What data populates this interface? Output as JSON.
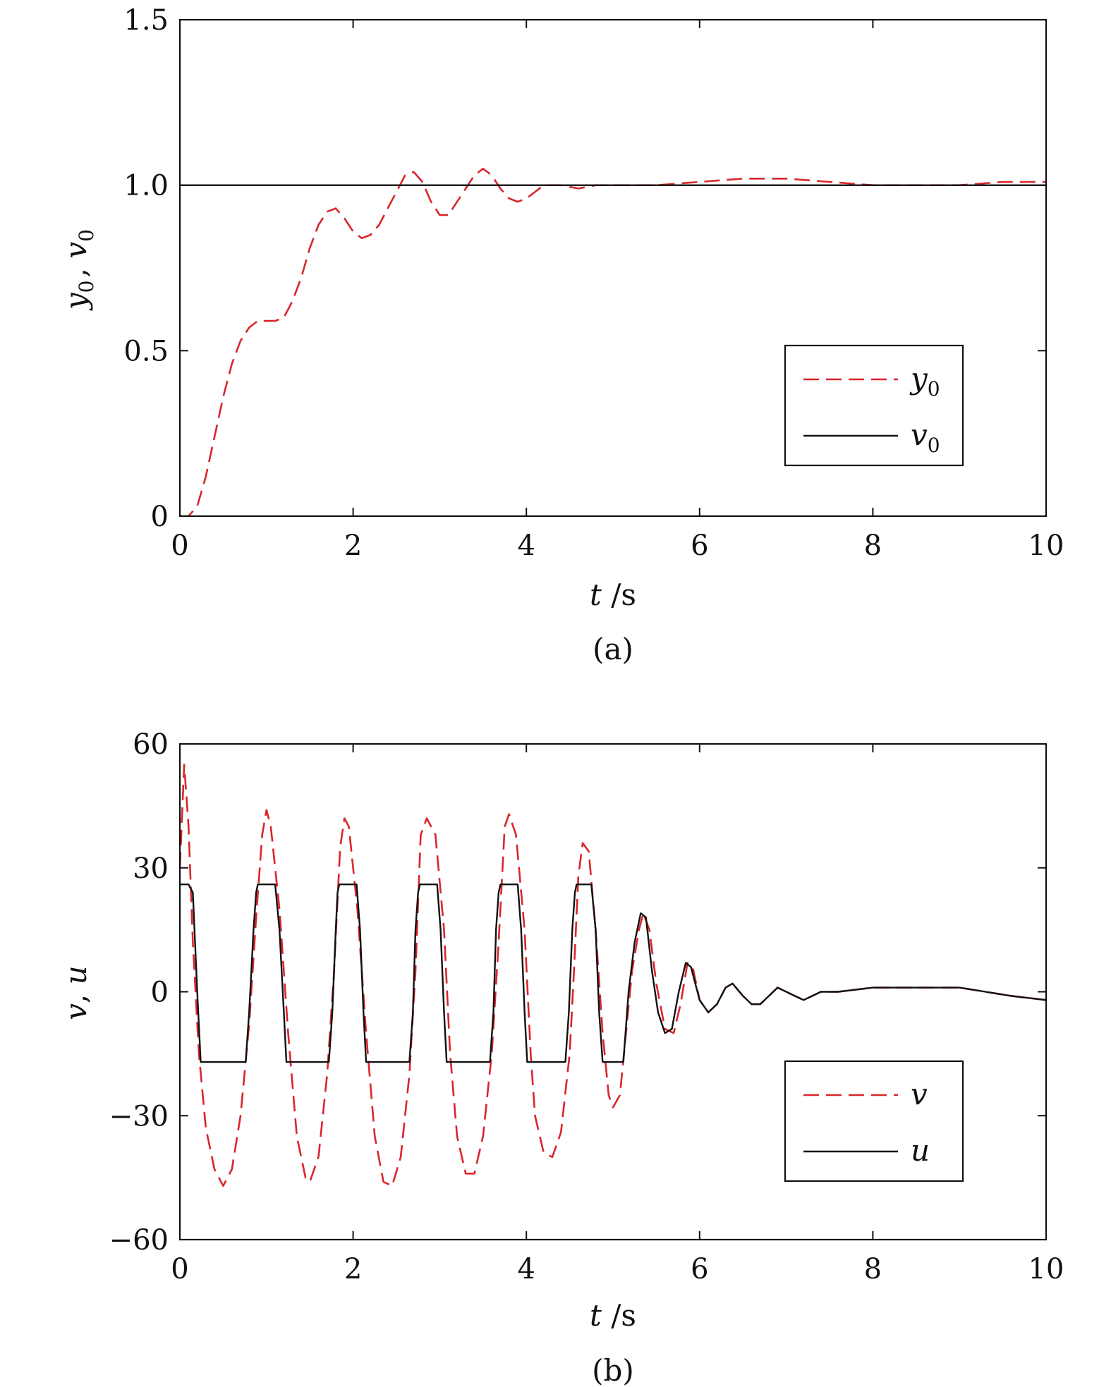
{
  "chart_data": [
    {
      "type": "line",
      "caption": "(a)",
      "xlabel": {
        "var": "t",
        "unit": "/s"
      },
      "ylabel": {
        "parts": [
          {
            "var": "y",
            "sub": "0"
          },
          {
            "sep": ", "
          },
          {
            "var": "v",
            "sub": "0"
          }
        ]
      },
      "xlim": [
        0,
        10
      ],
      "ylim": [
        0,
        1.5
      ],
      "xticks": [
        "0",
        "2",
        "4",
        "6",
        "8",
        "10"
      ],
      "xtick_values": [
        0,
        2,
        4,
        6,
        8,
        10
      ],
      "yticks": [
        "0",
        "0.5",
        "1.0",
        "1.5"
      ],
      "ytick_values": [
        0,
        0.5,
        1.0,
        1.5
      ],
      "grid": false,
      "legend_position": "right-middle",
      "series": [
        {
          "name": {
            "var": "y",
            "sub": "0"
          },
          "color": "#d9262c",
          "style": "dashed",
          "points": [
            [
              0,
              0
            ],
            [
              0.1,
              0.0
            ],
            [
              0.2,
              0.03
            ],
            [
              0.3,
              0.12
            ],
            [
              0.4,
              0.24
            ],
            [
              0.5,
              0.36
            ],
            [
              0.6,
              0.46
            ],
            [
              0.7,
              0.53
            ],
            [
              0.8,
              0.57
            ],
            [
              0.9,
              0.59
            ],
            [
              1.0,
              0.59
            ],
            [
              1.1,
              0.59
            ],
            [
              1.2,
              0.6
            ],
            [
              1.3,
              0.65
            ],
            [
              1.4,
              0.72
            ],
            [
              1.5,
              0.81
            ],
            [
              1.6,
              0.88
            ],
            [
              1.7,
              0.92
            ],
            [
              1.8,
              0.93
            ],
            [
              1.9,
              0.9
            ],
            [
              2.0,
              0.86
            ],
            [
              2.1,
              0.84
            ],
            [
              2.2,
              0.85
            ],
            [
              2.3,
              0.88
            ],
            [
              2.4,
              0.93
            ],
            [
              2.5,
              0.98
            ],
            [
              2.6,
              1.03
            ],
            [
              2.7,
              1.04
            ],
            [
              2.8,
              1.01
            ],
            [
              2.9,
              0.95
            ],
            [
              3.0,
              0.91
            ],
            [
              3.1,
              0.91
            ],
            [
              3.2,
              0.95
            ],
            [
              3.3,
              0.99
            ],
            [
              3.4,
              1.03
            ],
            [
              3.5,
              1.05
            ],
            [
              3.6,
              1.03
            ],
            [
              3.7,
              0.99
            ],
            [
              3.8,
              0.96
            ],
            [
              3.9,
              0.95
            ],
            [
              4.0,
              0.96
            ],
            [
              4.1,
              0.98
            ],
            [
              4.2,
              1.0
            ],
            [
              4.4,
              1.0
            ],
            [
              4.6,
              0.99
            ],
            [
              4.8,
              1.0
            ],
            [
              5.0,
              1.0
            ],
            [
              5.5,
              1.0
            ],
            [
              6.0,
              1.01
            ],
            [
              6.5,
              1.02
            ],
            [
              7.0,
              1.02
            ],
            [
              7.5,
              1.01
            ],
            [
              8.0,
              1.0
            ],
            [
              8.5,
              1.0
            ],
            [
              9.0,
              1.0
            ],
            [
              9.5,
              1.01
            ],
            [
              10.0,
              1.01
            ]
          ]
        },
        {
          "name": {
            "var": "v",
            "sub": "0"
          },
          "color": "#111111",
          "style": "solid",
          "points": [
            [
              0,
              1.0
            ],
            [
              10,
              1.0
            ]
          ]
        }
      ]
    },
    {
      "type": "line",
      "caption": "(b)",
      "xlabel": {
        "var": "t",
        "unit": "/s"
      },
      "ylabel": {
        "parts": [
          {
            "var": "v"
          },
          {
            "sep": ", "
          },
          {
            "var": "u"
          }
        ]
      },
      "xlim": [
        0,
        10
      ],
      "ylim": [
        -60,
        60
      ],
      "xticks": [
        "0",
        "2",
        "4",
        "6",
        "8",
        "10"
      ],
      "xtick_values": [
        0,
        2,
        4,
        6,
        8,
        10
      ],
      "yticks": [
        "−60",
        "−30",
        "0",
        "30",
        "60"
      ],
      "ytick_values": [
        -60,
        -30,
        0,
        30,
        60
      ],
      "grid": false,
      "legend_position": "bottom-right",
      "series": [
        {
          "name": {
            "var": "v"
          },
          "color": "#d9262c",
          "style": "dashed",
          "points": [
            [
              0,
              30
            ],
            [
              0.05,
              55
            ],
            [
              0.1,
              40
            ],
            [
              0.15,
              12
            ],
            [
              0.22,
              -15
            ],
            [
              0.3,
              -33
            ],
            [
              0.4,
              -43
            ],
            [
              0.5,
              -47
            ],
            [
              0.6,
              -43
            ],
            [
              0.7,
              -30
            ],
            [
              0.8,
              -8
            ],
            [
              0.88,
              18
            ],
            [
              0.95,
              38
            ],
            [
              1.0,
              44
            ],
            [
              1.05,
              40
            ],
            [
              1.15,
              20
            ],
            [
              1.25,
              -10
            ],
            [
              1.35,
              -35
            ],
            [
              1.45,
              -45
            ],
            [
              1.5,
              -46
            ],
            [
              1.6,
              -40
            ],
            [
              1.7,
              -20
            ],
            [
              1.78,
              5
            ],
            [
              1.85,
              35
            ],
            [
              1.9,
              42
            ],
            [
              1.95,
              40
            ],
            [
              2.05,
              20
            ],
            [
              2.15,
              -10
            ],
            [
              2.25,
              -35
            ],
            [
              2.35,
              -46
            ],
            [
              2.45,
              -47
            ],
            [
              2.55,
              -40
            ],
            [
              2.65,
              -20
            ],
            [
              2.72,
              5
            ],
            [
              2.78,
              38
            ],
            [
              2.85,
              42
            ],
            [
              2.95,
              38
            ],
            [
              3.05,
              15
            ],
            [
              3.12,
              -15
            ],
            [
              3.2,
              -35
            ],
            [
              3.3,
              -44
            ],
            [
              3.4,
              -44
            ],
            [
              3.5,
              -35
            ],
            [
              3.6,
              -15
            ],
            [
              3.68,
              12
            ],
            [
              3.75,
              40
            ],
            [
              3.8,
              43
            ],
            [
              3.88,
              38
            ],
            [
              3.98,
              15
            ],
            [
              4.05,
              -15
            ],
            [
              4.1,
              -30
            ],
            [
              4.2,
              -39
            ],
            [
              4.3,
              -40
            ],
            [
              4.4,
              -34
            ],
            [
              4.5,
              -15
            ],
            [
              4.55,
              5
            ],
            [
              4.6,
              28
            ],
            [
              4.65,
              36
            ],
            [
              4.72,
              34
            ],
            [
              4.8,
              15
            ],
            [
              4.88,
              -10
            ],
            [
              4.95,
              -25
            ],
            [
              5.0,
              -28
            ],
            [
              5.08,
              -25
            ],
            [
              5.15,
              -10
            ],
            [
              5.22,
              5
            ],
            [
              5.3,
              15
            ],
            [
              5.35,
              19
            ],
            [
              5.42,
              15
            ],
            [
              5.5,
              2
            ],
            [
              5.6,
              -9
            ],
            [
              5.7,
              -10
            ],
            [
              5.78,
              -3
            ],
            [
              5.86,
              7
            ],
            [
              5.92,
              6
            ],
            [
              6.0,
              -2
            ],
            [
              6.1,
              -5
            ],
            [
              6.2,
              -3
            ],
            [
              6.3,
              1
            ],
            [
              6.38,
              2
            ],
            [
              6.5,
              -1
            ],
            [
              6.6,
              -3
            ],
            [
              6.7,
              -3
            ],
            [
              6.8,
              -1
            ],
            [
              6.9,
              1
            ],
            [
              7.0,
              0
            ],
            [
              7.1,
              -1
            ],
            [
              7.2,
              -2
            ],
            [
              7.3,
              -1
            ],
            [
              7.4,
              0
            ],
            [
              7.6,
              0
            ],
            [
              8.0,
              1
            ],
            [
              8.5,
              1
            ],
            [
              9.0,
              1
            ],
            [
              9.3,
              0
            ],
            [
              9.6,
              -1
            ],
            [
              10.0,
              -2
            ]
          ]
        },
        {
          "name": {
            "var": "u"
          },
          "color": "#111111",
          "style": "solid",
          "points": [
            [
              0,
              26
            ],
            [
              0.1,
              26
            ],
            [
              0.15,
              24
            ],
            [
              0.2,
              0
            ],
            [
              0.24,
              -17
            ],
            [
              0.76,
              -17
            ],
            [
              0.8,
              -5
            ],
            [
              0.85,
              15
            ],
            [
              0.88,
              24
            ],
            [
              0.9,
              26
            ],
            [
              1.1,
              26
            ],
            [
              1.15,
              15
            ],
            [
              1.2,
              -5
            ],
            [
              1.23,
              -17
            ],
            [
              1.72,
              -17
            ],
            [
              1.76,
              -5
            ],
            [
              1.8,
              15
            ],
            [
              1.82,
              24
            ],
            [
              1.84,
              26
            ],
            [
              2.04,
              26
            ],
            [
              2.08,
              15
            ],
            [
              2.12,
              -5
            ],
            [
              2.15,
              -17
            ],
            [
              2.65,
              -17
            ],
            [
              2.69,
              -5
            ],
            [
              2.72,
              15
            ],
            [
              2.75,
              24
            ],
            [
              2.77,
              26
            ],
            [
              2.97,
              26
            ],
            [
              3.01,
              15
            ],
            [
              3.05,
              -5
            ],
            [
              3.08,
              -17
            ],
            [
              3.58,
              -17
            ],
            [
              3.62,
              -5
            ],
            [
              3.65,
              15
            ],
            [
              3.68,
              24
            ],
            [
              3.7,
              26
            ],
            [
              3.9,
              26
            ],
            [
              3.94,
              15
            ],
            [
              3.98,
              -5
            ],
            [
              4.01,
              -17
            ],
            [
              4.45,
              -17
            ],
            [
              4.49,
              -5
            ],
            [
              4.53,
              15
            ],
            [
              4.56,
              24
            ],
            [
              4.58,
              26
            ],
            [
              4.75,
              26
            ],
            [
              4.8,
              15
            ],
            [
              4.84,
              -5
            ],
            [
              4.88,
              -17
            ],
            [
              5.12,
              -17
            ],
            [
              5.18,
              0
            ],
            [
              5.25,
              12
            ],
            [
              5.32,
              19
            ],
            [
              5.38,
              18
            ],
            [
              5.45,
              5
            ],
            [
              5.52,
              -5
            ],
            [
              5.6,
              -10
            ],
            [
              5.68,
              -9
            ],
            [
              5.76,
              0
            ],
            [
              5.84,
              7
            ],
            [
              5.9,
              6
            ],
            [
              6.0,
              -2
            ],
            [
              6.1,
              -5
            ],
            [
              6.2,
              -3
            ],
            [
              6.3,
              1
            ],
            [
              6.38,
              2
            ],
            [
              6.5,
              -1
            ],
            [
              6.6,
              -3
            ],
            [
              6.7,
              -3
            ],
            [
              6.8,
              -1
            ],
            [
              6.9,
              1
            ],
            [
              7.0,
              0
            ],
            [
              7.1,
              -1
            ],
            [
              7.2,
              -2
            ],
            [
              7.3,
              -1
            ],
            [
              7.4,
              0
            ],
            [
              7.6,
              0
            ],
            [
              8.0,
              1
            ],
            [
              8.5,
              1
            ],
            [
              9.0,
              1
            ],
            [
              9.3,
              0
            ],
            [
              9.6,
              -1
            ],
            [
              10.0,
              -2
            ]
          ]
        }
      ]
    }
  ]
}
